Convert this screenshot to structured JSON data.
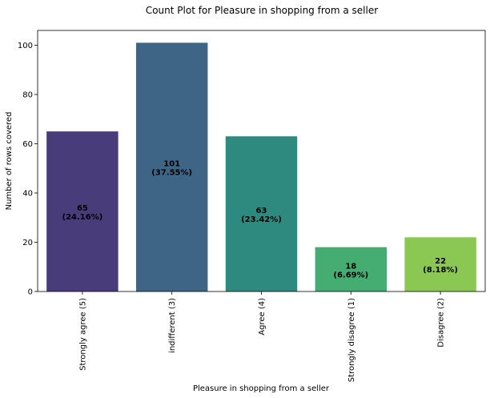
{
  "chart_data": {
    "type": "bar",
    "title": "Count Plot for Pleasure in shopping from a seller",
    "xlabel": "Pleasure in shopping from a seller",
    "ylabel": "Number of rows covered",
    "categories": [
      "Strongly agree (5)",
      "indifferent (3)",
      "Agree (4)",
      "Strongly disagree (1)",
      "Disagree (2)"
    ],
    "values": [
      65,
      101,
      63,
      18,
      22
    ],
    "data_labels": [
      {
        "count": "65",
        "pct": "(24.16%)"
      },
      {
        "count": "101",
        "pct": "(37.55%)"
      },
      {
        "count": "63",
        "pct": "(23.42%)"
      },
      {
        "count": "18",
        "pct": "(6.69%)"
      },
      {
        "count": "22",
        "pct": "(8.18%)"
      }
    ],
    "colors": [
      "#483d7a",
      "#3e6585",
      "#2e8a7e",
      "#45ad72",
      "#8bc853"
    ],
    "ylim": [
      0,
      106
    ],
    "yticks": [
      0,
      20,
      40,
      60,
      80,
      100
    ],
    "grid": false,
    "legend": "none"
  }
}
